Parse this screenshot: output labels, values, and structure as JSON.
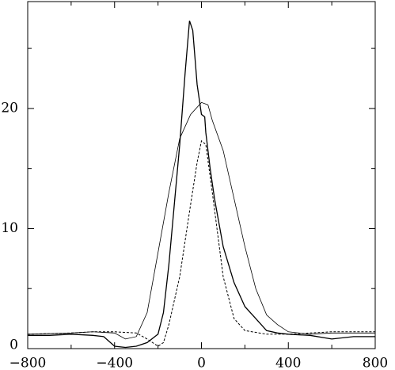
{
  "chart_data": {
    "type": "line",
    "xlim": [
      -800,
      800
    ],
    "ylim": [
      0,
      28.9
    ],
    "xticks": [
      {
        "value": -800,
        "label": "−800"
      },
      {
        "value": -400,
        "label": "−400"
      },
      0,
      400,
      800
    ],
    "xminor": [
      -600,
      -200,
      200,
      600
    ],
    "yticks": [
      0,
      10,
      20
    ],
    "yminor": [
      5,
      15,
      25
    ],
    "series": [
      {
        "color": "#000",
        "dash": false,
        "width": 1.3,
        "x": [
          -800,
          -700,
          -600,
          -500,
          -450,
          -400,
          -350,
          -300,
          -250,
          -200,
          -175,
          -150,
          -125,
          -100,
          -75,
          -55,
          -40,
          -20,
          0,
          15,
          20,
          40,
          60,
          100,
          150,
          200,
          250,
          300,
          350,
          400,
          500,
          600,
          700,
          800
        ],
        "values": [
          1.1,
          1.1,
          1.2,
          1.1,
          1.0,
          0.2,
          0.1,
          0.2,
          0.5,
          1.2,
          3,
          7,
          12,
          17,
          23,
          27.3,
          26.5,
          22,
          19.5,
          19.3,
          18,
          15,
          12.5,
          8.5,
          5.5,
          3.5,
          2.5,
          1.5,
          1.3,
          1.2,
          1.1,
          0.8,
          1.0,
          1.0
        ]
      },
      {
        "color": "#000",
        "dash": false,
        "width": 0.8,
        "x": [
          -800,
          -600,
          -500,
          -400,
          -350,
          -300,
          -250,
          -200,
          -150,
          -100,
          -50,
          0,
          30,
          50,
          100,
          150,
          200,
          250,
          300,
          350,
          400,
          500,
          600,
          700,
          800
        ],
        "values": [
          1.2,
          1.3,
          1.4,
          1.3,
          0.8,
          1.0,
          3,
          8,
          13,
          17.5,
          19.5,
          20.5,
          20.3,
          19,
          16.5,
          12.5,
          8.5,
          5,
          2.8,
          2,
          1.4,
          1.2,
          1.3,
          1.3,
          1.3
        ]
      },
      {
        "color": "#000",
        "dash": true,
        "width": 1,
        "x": [
          -800,
          -600,
          -500,
          -400,
          -300,
          -250,
          -200,
          -175,
          -150,
          -100,
          -50,
          -20,
          0,
          20,
          50,
          100,
          150,
          200,
          300,
          400,
          500,
          600,
          800
        ],
        "values": [
          1.2,
          1.3,
          1.4,
          1.4,
          1.3,
          0.8,
          0.2,
          0.5,
          2,
          6,
          12,
          15.5,
          17.3,
          17,
          13,
          6,
          2.5,
          1.5,
          1.2,
          1.2,
          1.3,
          1.4,
          1.4
        ]
      }
    ]
  }
}
